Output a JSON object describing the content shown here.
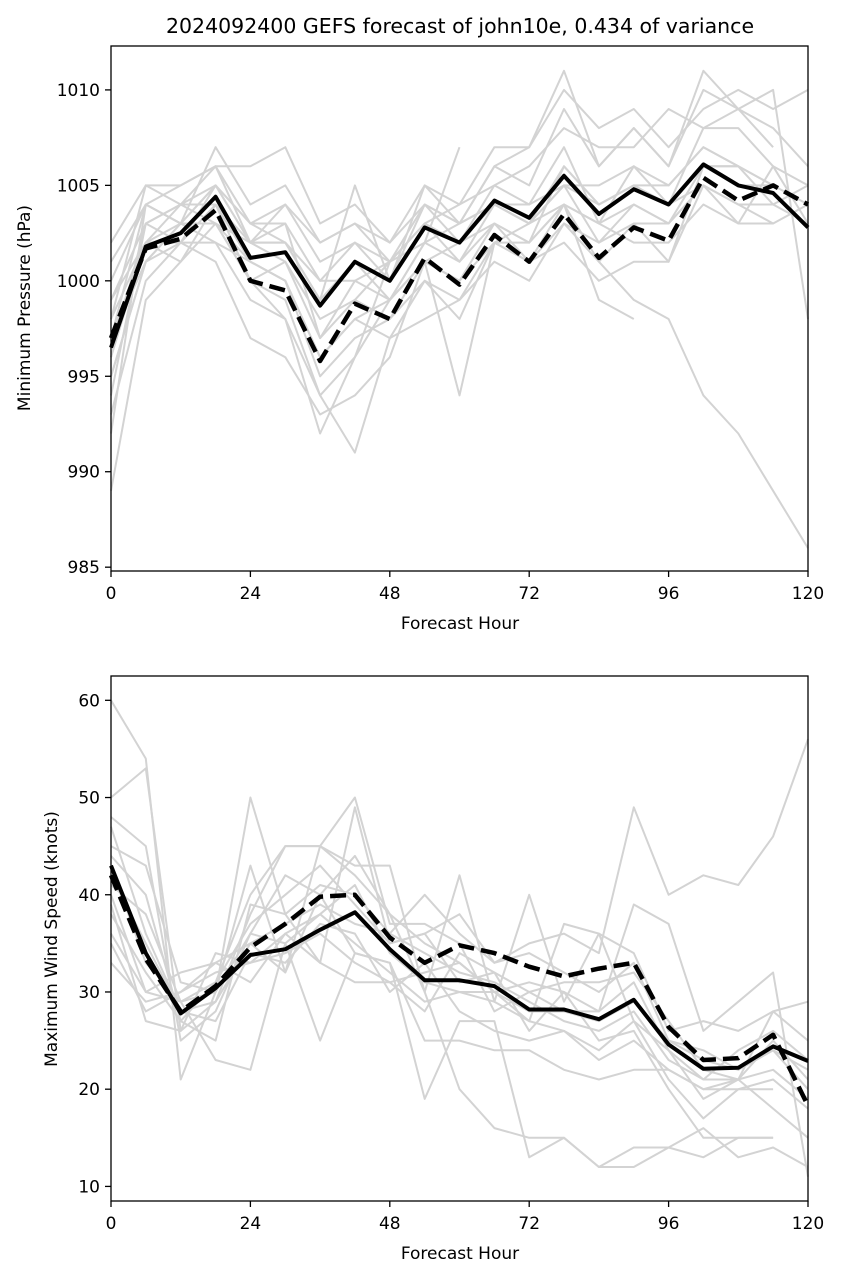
{
  "chart_data": [
    {
      "type": "line",
      "title": "2024092400 GEFS forecast of john10e, 0.434 of variance",
      "xlabel": "Forecast Hour",
      "ylabel": "Minimum Pressure (hPa)",
      "xlim": [
        0,
        120
      ],
      "ylim": [
        984.8,
        1012.3
      ],
      "xticks": [
        0,
        24,
        48,
        72,
        96,
        120
      ],
      "yticks": [
        985,
        990,
        995,
        1000,
        1005,
        1010
      ],
      "grid": false,
      "x": [
        0,
        6,
        12,
        18,
        24,
        30,
        36,
        42,
        48,
        54,
        60,
        66,
        72,
        78,
        84,
        90,
        96,
        102,
        108,
        114,
        120
      ],
      "series": [
        {
          "style": "solid-black",
          "values": [
            996.5,
            1001.8,
            1002.5,
            1004.4,
            1001.2,
            1001.5,
            998.7,
            1001.0,
            1000.0,
            1002.8,
            1002.0,
            1004.2,
            1003.3,
            1005.5,
            1003.5,
            1004.8,
            1004.0,
            1006.1,
            1005.0,
            1004.6,
            1002.8
          ]
        },
        {
          "style": "dashed-black",
          "values": [
            997.0,
            1001.7,
            1002.2,
            1003.7,
            1000.0,
            999.5,
            995.8,
            998.8,
            998.0,
            1001.2,
            999.8,
            1002.4,
            1001.0,
            1003.5,
            1001.2,
            1002.8,
            1002.1,
            1005.4,
            1004.2,
            1005.0,
            1004.0
          ]
        },
        {
          "style": "member",
          "values": [
            989.0,
            999.0,
            1001.0,
            1003.0,
            1000.0,
            998.0,
            994.0,
            996.0,
            999.0,
            1001.0,
            994.0,
            1002.0,
            1003.0,
            1004.0,
            1001.0,
            999.0,
            998.0,
            994.0,
            992.0,
            989.0,
            986.0
          ]
        },
        {
          "style": "member",
          "values": [
            992.0,
            1004.0,
            1003.0,
            1007.0,
            1004.0,
            1005.0,
            1002.0,
            1003.0,
            1001.0,
            1004.0,
            1003.0,
            1006.0,
            1007.0,
            1011.0,
            1006.0,
            1008.0,
            1006.0,
            1011.0,
            1009.0,
            1007.0,
            null
          ]
        },
        {
          "style": "member",
          "values": [
            994.0,
            1003.0,
            1004.0,
            1006.0,
            1006.0,
            1007.0,
            1003.0,
            1004.0,
            1002.0,
            1005.0,
            1004.0,
            1007.0,
            1007.0,
            1010.0,
            1008.0,
            1009.0,
            1007.0,
            1009.0,
            1010.0,
            1009.0,
            1010.0
          ]
        },
        {
          "style": "member",
          "values": [
            998.0,
            1005.0,
            1005.0,
            1006.0,
            1002.0,
            1003.0,
            997.0,
            1000.0,
            999.0,
            1002.0,
            1001.0,
            1003.0,
            1002.0,
            1006.0,
            1004.0,
            1005.0,
            1004.0,
            1008.0,
            1009.0,
            1010.0,
            998.0
          ]
        },
        {
          "style": "member",
          "values": [
            1000.0,
            1004.0,
            1003.0,
            1005.0,
            1003.0,
            1002.0,
            999.0,
            1005.0,
            1000.0,
            1004.0,
            1002.0,
            1005.0,
            1004.0,
            1007.0,
            1003.0,
            1006.0,
            1005.0,
            1007.0,
            1006.0,
            1005.0,
            1004.0
          ]
        },
        {
          "style": "member",
          "values": [
            997.0,
            1002.0,
            1001.0,
            1004.0,
            1000.0,
            999.0,
            994.0,
            991.0,
            997.0,
            1000.0,
            999.0,
            1001.0,
            1000.0,
            1003.0,
            1001.0,
            1003.0,
            1001.0,
            1006.0,
            1006.0,
            1004.0,
            1005.0
          ]
        },
        {
          "style": "member",
          "values": [
            995.0,
            1001.0,
            1003.0,
            1002.0,
            999.0,
            998.0,
            992.0,
            996.0,
            1001.0,
            1003.0,
            1001.0,
            1004.0,
            1003.0,
            1005.0,
            1002.0,
            1004.0,
            1003.0,
            1005.0,
            1004.0,
            1003.0,
            null
          ]
        },
        {
          "style": "member",
          "values": [
            996.0,
            1002.0,
            1004.0,
            1003.0,
            1001.0,
            1000.0,
            996.0,
            998.0,
            997.0,
            998.0,
            999.0,
            1002.0,
            1001.0,
            1004.0,
            1003.0,
            1002.0,
            1002.0,
            1004.0,
            1003.0,
            1006.0,
            1005.0
          ]
        },
        {
          "style": "member",
          "values": [
            993.0,
            1000.0,
            1002.0,
            1001.0,
            997.0,
            996.0,
            993.0,
            994.0,
            996.0,
            1001.0,
            1002.0,
            1003.0,
            1001.0,
            1002.0,
            1000.0,
            1001.0,
            1001.0,
            1005.0,
            1003.0,
            1003.0,
            1004.0
          ]
        },
        {
          "style": "member",
          "values": [
            999.0,
            1003.0,
            1002.0,
            1005.0,
            1002.0,
            1004.0,
            1001.0,
            1002.0,
            1001.0,
            1003.0,
            1004.0,
            1005.0,
            1006.0,
            1008.0,
            1007.0,
            1007.0,
            1009.0,
            1008.0,
            1008.0,
            1006.0,
            1003.0
          ]
        },
        {
          "style": "member",
          "values": [
            1001.0,
            1004.0,
            1005.0,
            1006.0,
            1003.0,
            1003.0,
            1000.0,
            1002.0,
            1000.0,
            1005.0,
            1003.0,
            1006.0,
            1005.0,
            1009.0,
            1006.0,
            1008.0,
            1006.0,
            1010.0,
            1009.0,
            1008.0,
            1006.0
          ]
        },
        {
          "style": "member",
          "values": [
            1002.0,
            1005.0,
            1004.0,
            1004.0,
            1002.0,
            1001.0,
            998.0,
            999.0,
            1001.0,
            1002.0,
            1003.0,
            1004.0,
            1003.0,
            1006.0,
            1004.0,
            1005.0,
            1005.0,
            1007.0,
            1006.0,
            null,
            null
          ]
        },
        {
          "style": "member",
          "values": [
            997.0,
            1001.0,
            1003.0,
            1003.0,
            1000.0,
            1001.0,
            997.0,
            999.0,
            998.0,
            1001.0,
            1000.0,
            1002.0,
            1002.0,
            1004.0,
            999.0,
            998.0,
            null,
            null,
            null,
            null,
            null
          ]
        },
        {
          "style": "member",
          "values": [
            996.0,
            1003.0,
            1004.0,
            1005.0,
            1002.0,
            1002.0,
            999.0,
            1001.0,
            999.0,
            1002.0,
            1007.0,
            null,
            null,
            null,
            null,
            null,
            null,
            null,
            null,
            null,
            null
          ]
        },
        {
          "style": "member",
          "values": [
            998.0,
            1002.0,
            1002.0,
            1004.0,
            1001.0,
            1000.0,
            995.0,
            997.0,
            998.0,
            1000.0,
            998.0,
            1002.0,
            1001.0,
            1003.0,
            1002.0,
            1003.0,
            1003.0,
            1006.0,
            1006.0,
            1005.0,
            null
          ]
        },
        {
          "style": "member",
          "values": [
            995.0,
            1001.0,
            1002.0,
            1002.0,
            1001.0,
            1000.0,
            996.0,
            998.0,
            999.0,
            1001.0,
            1000.0,
            1003.0,
            1002.0,
            1004.0,
            1003.0,
            1004.0,
            1003.0,
            1005.0,
            1004.0,
            1004.0,
            1003.0
          ]
        },
        {
          "style": "member",
          "values": [
            999.0,
            1002.0,
            1003.0,
            1003.0,
            1002.0,
            1002.0,
            1000.0,
            1000.0,
            1001.0,
            1003.0,
            1002.0,
            1004.0,
            1003.0,
            1005.0,
            1005.0,
            1006.0,
            1004.0,
            1006.0,
            1005.0,
            1005.0,
            null
          ]
        },
        {
          "style": "member",
          "values": [
            997.0,
            1004.0,
            1003.0,
            1005.0,
            1003.0,
            1004.0,
            1002.0,
            1003.0,
            1002.0,
            1004.0,
            1003.0,
            1004.0,
            1004.0,
            1005.0,
            1004.0,
            1005.0,
            1004.0,
            1005.0,
            null,
            null,
            null
          ]
        }
      ]
    },
    {
      "type": "line",
      "title": "",
      "xlabel": "Forecast Hour",
      "ylabel": "Maximum Wind Speed (knots)",
      "xlim": [
        0,
        120
      ],
      "ylim": [
        8.5,
        62.5
      ],
      "xticks": [
        0,
        24,
        48,
        72,
        96,
        120
      ],
      "yticks": [
        10,
        20,
        30,
        40,
        50,
        60
      ],
      "grid": false,
      "x": [
        0,
        6,
        12,
        18,
        24,
        30,
        36,
        42,
        48,
        54,
        60,
        66,
        72,
        78,
        84,
        90,
        96,
        102,
        108,
        114,
        120
      ],
      "series": [
        {
          "style": "solid-black",
          "values": [
            43.0,
            34.0,
            27.8,
            30.4,
            33.8,
            34.4,
            36.4,
            38.2,
            34.4,
            31.2,
            31.2,
            30.6,
            28.2,
            28.2,
            27.2,
            29.2,
            24.6,
            22.1,
            22.2,
            24.4,
            22.9
          ]
        },
        {
          "style": "dashed-black",
          "values": [
            42.0,
            33.4,
            28.0,
            30.6,
            34.6,
            37.0,
            39.8,
            40.0,
            35.6,
            33.0,
            34.8,
            34.0,
            32.6,
            31.6,
            32.4,
            33.0,
            26.4,
            23.0,
            23.2,
            25.6,
            18.3
          ]
        },
        {
          "style": "member",
          "values": [
            60.0,
            54.0,
            21.0,
            30.0,
            50.0,
            38.0,
            33.0,
            49.0,
            35.0,
            36.0,
            38.0,
            33.0,
            35.0,
            36.0,
            34.0,
            49.0,
            40.0,
            42.0,
            41.0,
            46.0,
            56.0
          ]
        },
        {
          "style": "member",
          "values": [
            50.0,
            53.0,
            26.0,
            29.0,
            38.0,
            45.0,
            45.0,
            50.0,
            37.0,
            37.0,
            35.0,
            28.0,
            30.0,
            28.0,
            28.0,
            39.0,
            37.0,
            26.0,
            29.0,
            32.0,
            11.0
          ]
        },
        {
          "style": "member",
          "values": [
            48.0,
            45.0,
            25.0,
            28.0,
            36.0,
            42.0,
            40.0,
            44.0,
            38.0,
            30.0,
            20.0,
            16.0,
            15.0,
            15.0,
            12.0,
            12.0,
            14.0,
            13.0,
            15.0,
            15.0,
            null
          ]
        },
        {
          "style": "member",
          "values": [
            40.0,
            30.0,
            29.0,
            23.0,
            22.0,
            35.0,
            25.0,
            34.0,
            33.0,
            19.0,
            27.0,
            27.0,
            13.0,
            15.0,
            12.0,
            14.0,
            14.0,
            16.0,
            13.0,
            14.0,
            12.0
          ]
        },
        {
          "style": "member",
          "values": [
            45.0,
            43.0,
            31.0,
            30.0,
            43.0,
            32.0,
            45.0,
            43.0,
            43.0,
            30.0,
            42.0,
            29.0,
            40.0,
            29.0,
            36.0,
            34.0,
            26.0,
            27.0,
            26.0,
            28.0,
            25.0
          ]
        },
        {
          "style": "member",
          "values": [
            38.0,
            32.0,
            27.0,
            31.0,
            40.0,
            45.0,
            45.0,
            42.0,
            38.0,
            35.0,
            33.0,
            30.0,
            27.0,
            37.0,
            36.0,
            27.0,
            24.0,
            19.0,
            21.0,
            28.0,
            29.0
          ]
        },
        {
          "style": "member",
          "values": [
            35.0,
            28.0,
            30.0,
            32.0,
            33.0,
            36.0,
            38.0,
            35.0,
            32.0,
            29.0,
            30.0,
            29.0,
            27.0,
            26.0,
            23.0,
            25.0,
            22.0,
            20.0,
            20.0,
            20.0,
            null
          ]
        },
        {
          "style": "member",
          "values": [
            42.0,
            35.0,
            28.0,
            27.0,
            34.0,
            33.0,
            37.0,
            36.0,
            30.0,
            33.0,
            28.0,
            26.0,
            25.0,
            26.0,
            24.0,
            27.0,
            21.0,
            17.0,
            20.0,
            21.0,
            18.0
          ]
        },
        {
          "style": "member",
          "values": [
            36.0,
            30.0,
            32.0,
            33.0,
            31.0,
            36.0,
            33.0,
            31.0,
            31.0,
            32.0,
            33.0,
            30.0,
            31.0,
            30.0,
            28.0,
            31.0,
            24.0,
            21.0,
            24.0,
            26.0,
            23.0
          ]
        },
        {
          "style": "member",
          "values": [
            44.0,
            40.0,
            27.0,
            25.0,
            39.0,
            38.0,
            41.0,
            40.0,
            36.0,
            40.0,
            36.0,
            33.0,
            34.0,
            32.0,
            30.0,
            33.0,
            25.0,
            24.0,
            22.0,
            24.0,
            20.0
          ]
        },
        {
          "style": "member",
          "values": [
            33.0,
            29.0,
            30.0,
            33.0,
            35.0,
            32.0,
            40.0,
            34.0,
            33.0,
            25.0,
            25.0,
            24.0,
            24.0,
            22.0,
            21.0,
            22.0,
            22.0,
            20.0,
            21.0,
            18.0,
            15.0
          ]
        },
        {
          "style": "member",
          "values": [
            41.0,
            38.0,
            29.0,
            31.0,
            37.0,
            40.0,
            43.0,
            39.0,
            35.0,
            36.0,
            31.0,
            32.0,
            30.0,
            31.0,
            31.0,
            32.0,
            27.0,
            22.0,
            21.0,
            25.0,
            21.0
          ]
        },
        {
          "style": "member",
          "values": [
            47.0,
            36.0,
            28.0,
            29.0,
            35.0,
            37.0,
            39.0,
            37.0,
            36.0,
            34.0,
            32.0,
            31.0,
            29.0,
            27.0,
            26.0,
            28.0,
            23.0,
            21.0,
            21.0,
            22.0,
            19.0
          ]
        },
        {
          "style": "member",
          "values": [
            39.0,
            27.0,
            26.0,
            34.0,
            33.0,
            34.0,
            36.0,
            33.0,
            31.0,
            28.0,
            34.0,
            32.0,
            26.0,
            30.0,
            25.0,
            26.0,
            20.0,
            15.0,
            15.0,
            15.0,
            null
          ]
        },
        {
          "style": "member",
          "values": [
            43.0,
            33.0,
            29.0,
            30.0,
            36.0,
            35.0,
            38.0,
            41.0,
            34.0,
            31.0,
            30.0,
            30.0,
            28.0,
            28.0,
            27.0,
            29.0,
            25.0,
            23.0,
            22.0,
            24.0,
            22.0
          ]
        }
      ]
    }
  ]
}
